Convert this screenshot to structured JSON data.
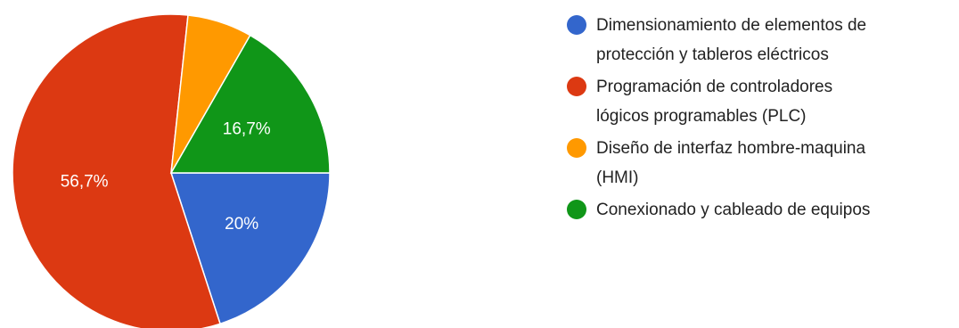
{
  "chart_data": {
    "type": "pie",
    "series": [
      {
        "name": "Dimensionamiento de elementos de protección y tableros eléctricos",
        "legend_lines": [
          "Dimensionamiento de elementos de",
          "protección y tableros eléctricos"
        ],
        "value": 20,
        "label": "20%",
        "color": "#3366cc"
      },
      {
        "name": "Programación de controladores lógicos programables (PLC)",
        "legend_lines": [
          "Programación de controladores",
          "lógicos programables (PLC)"
        ],
        "value": 56.7,
        "label": "56,7%",
        "color": "#dc3912"
      },
      {
        "name": "Diseño de interfaz hombre-maquina (HMI)",
        "legend_lines": [
          "Diseño de interfaz hombre-maquina",
          "(HMI)"
        ],
        "value": 6.6,
        "label": "",
        "color": "#ff9900"
      },
      {
        "name": "Conexionado y cableado de equipos",
        "legend_lines": [
          "Conexionado y cableado de equipos"
        ],
        "value": 16.7,
        "label": "16,7%",
        "color": "#109618"
      }
    ],
    "start": "3 o'clock, clockwise",
    "legend_position": "right"
  }
}
